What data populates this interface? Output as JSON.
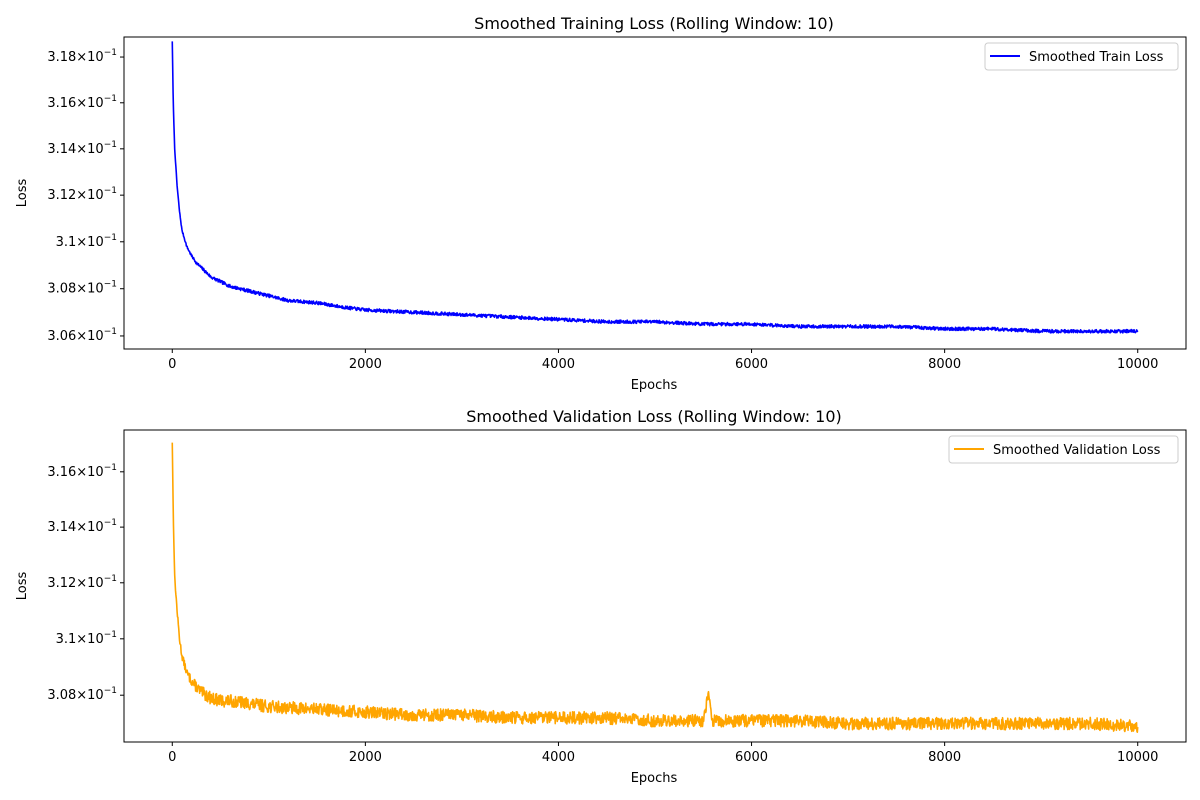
{
  "chart_data": [
    {
      "type": "line",
      "title": "Smoothed Training Loss (Rolling Window: 10)",
      "xlabel": "Epochs",
      "ylabel": "Loss",
      "xlim": [
        -500,
        10500
      ],
      "ylim": [
        0.30545,
        0.31888
      ],
      "yscale": "log",
      "grid": false,
      "legend_placement": "top-right",
      "x_ticks": [
        {
          "value": 0,
          "label": "0"
        },
        {
          "value": 2000,
          "label": "2000"
        },
        {
          "value": 4000,
          "label": "4000"
        },
        {
          "value": 6000,
          "label": "6000"
        },
        {
          "value": 8000,
          "label": "8000"
        },
        {
          "value": 10000,
          "label": "10000"
        }
      ],
      "y_ticks": [
        {
          "value": 0.306,
          "mantissa": "3.06",
          "exponent": "−1"
        },
        {
          "value": 0.308,
          "mantissa": "3.08",
          "exponent": "−1"
        },
        {
          "value": 0.31,
          "mantissa": "3.1",
          "exponent": "−1"
        },
        {
          "value": 0.312,
          "mantissa": "3.12",
          "exponent": "−1"
        },
        {
          "value": 0.314,
          "mantissa": "3.14",
          "exponent": "−1"
        },
        {
          "value": 0.316,
          "mantissa": "3.16",
          "exponent": "−1"
        },
        {
          "value": 0.318,
          "mantissa": "3.18",
          "exponent": "−1"
        }
      ],
      "series": [
        {
          "name": "Smoothed Train Loss",
          "color": "#0000ff",
          "noise": 7e-05,
          "x": [
            0,
            10,
            25,
            50,
            75,
            100,
            150,
            200,
            250,
            300,
            400,
            500,
            600,
            700,
            800,
            1000,
            1200,
            1500,
            1800,
            2000,
            2500,
            3000,
            3500,
            4000,
            4500,
            5000,
            5500,
            6000,
            6500,
            7000,
            7500,
            8000,
            8500,
            9000,
            9500,
            10000
          ],
          "y": [
            0.3187,
            0.316,
            0.314,
            0.3124,
            0.3113,
            0.3105,
            0.3098,
            0.3094,
            0.3091,
            0.3089,
            0.3085,
            0.3083,
            0.3081,
            0.308,
            0.3079,
            0.3077,
            0.3075,
            0.3074,
            0.3072,
            0.3071,
            0.307,
            0.3069,
            0.3068,
            0.3067,
            0.3066,
            0.3066,
            0.3065,
            0.3065,
            0.3064,
            0.3064,
            0.3064,
            0.3063,
            0.3063,
            0.3062,
            0.3062,
            0.3062
          ]
        }
      ]
    },
    {
      "type": "line",
      "title": "Smoothed Validation Loss (Rolling Window: 10)",
      "xlabel": "Epochs",
      "ylabel": "Loss",
      "xlim": [
        -500,
        10500
      ],
      "ylim": [
        0.30635,
        0.31752
      ],
      "yscale": "log",
      "grid": false,
      "legend_placement": "top-right",
      "x_ticks": [
        {
          "value": 0,
          "label": "0"
        },
        {
          "value": 2000,
          "label": "2000"
        },
        {
          "value": 4000,
          "label": "4000"
        },
        {
          "value": 6000,
          "label": "6000"
        },
        {
          "value": 8000,
          "label": "8000"
        },
        {
          "value": 10000,
          "label": "10000"
        }
      ],
      "y_ticks": [
        {
          "value": 0.308,
          "mantissa": "3.08",
          "exponent": "−1"
        },
        {
          "value": 0.31,
          "mantissa": "3.1",
          "exponent": "−1"
        },
        {
          "value": 0.312,
          "mantissa": "3.12",
          "exponent": "−1"
        },
        {
          "value": 0.314,
          "mantissa": "3.14",
          "exponent": "−1"
        },
        {
          "value": 0.316,
          "mantissa": "3.16",
          "exponent": "−1"
        }
      ],
      "series": [
        {
          "name": "Smoothed Validation Loss",
          "color": "#ffa500",
          "noise": 0.00022,
          "x": [
            0,
            10,
            25,
            50,
            75,
            100,
            150,
            200,
            300,
            400,
            500,
            600,
            800,
            1000,
            1500,
            2000,
            2500,
            3000,
            3500,
            4000,
            4500,
            5000,
            5500,
            5550,
            5600,
            6000,
            6500,
            7000,
            7500,
            8000,
            8500,
            9000,
            9500,
            10000
          ],
          "y": [
            0.3171,
            0.3145,
            0.3122,
            0.311,
            0.31,
            0.3094,
            0.3088,
            0.3085,
            0.3081,
            0.3079,
            0.3078,
            0.3078,
            0.3077,
            0.3076,
            0.3075,
            0.3074,
            0.3073,
            0.3073,
            0.3072,
            0.3072,
            0.3072,
            0.3071,
            0.3071,
            0.308,
            0.3071,
            0.3071,
            0.3071,
            0.307,
            0.307,
            0.307,
            0.307,
            0.307,
            0.307,
            0.3069
          ]
        }
      ]
    }
  ]
}
